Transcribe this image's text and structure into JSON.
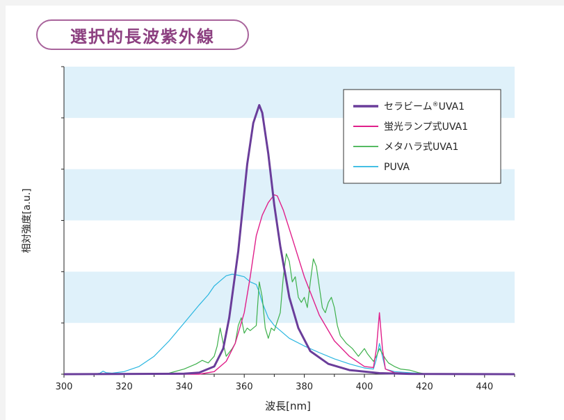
{
  "title": "選択的長波紫外線",
  "chart_data": {
    "type": "line",
    "title": "選択的長波紫外線",
    "xlabel": "波長[nm]",
    "ylabel": "相対強度[a.u.]",
    "xlim": [
      300,
      450
    ],
    "ylim": [
      0,
      6
    ],
    "xticks": [
      300,
      320,
      340,
      360,
      380,
      400,
      420,
      440
    ],
    "band_rows": [
      1,
      3,
      5
    ],
    "legend": "top-right",
    "series": [
      {
        "name": "セラビーム®UVA1",
        "legend_sup_split": [
          5,
          6
        ],
        "color": "#6a3d9a",
        "width": 3,
        "points": [
          [
            300,
            0
          ],
          [
            340,
            0.01
          ],
          [
            345,
            0.03
          ],
          [
            350,
            0.15
          ],
          [
            353,
            0.5
          ],
          [
            355,
            1.1
          ],
          [
            358,
            2.4
          ],
          [
            361,
            4.1
          ],
          [
            363,
            4.9
          ],
          [
            365,
            5.25
          ],
          [
            366,
            5.1
          ],
          [
            368,
            4.3
          ],
          [
            370,
            3.3
          ],
          [
            372,
            2.5
          ],
          [
            375,
            1.5
          ],
          [
            378,
            0.9
          ],
          [
            382,
            0.45
          ],
          [
            388,
            0.2
          ],
          [
            395,
            0.08
          ],
          [
            405,
            0.02
          ],
          [
            415,
            0.005
          ],
          [
            450,
            0
          ]
        ]
      },
      {
        "name": "蛍光ランプ式UVA1",
        "color": "#e01f8a",
        "width": 1.4,
        "points": [
          [
            300,
            0
          ],
          [
            345,
            0
          ],
          [
            350,
            0.05
          ],
          [
            354,
            0.25
          ],
          [
            357,
            0.6
          ],
          [
            360,
            1.2
          ],
          [
            362,
            1.9
          ],
          [
            364,
            2.7
          ],
          [
            366,
            3.1
          ],
          [
            368,
            3.35
          ],
          [
            370,
            3.5
          ],
          [
            371,
            3.48
          ],
          [
            373,
            3.2
          ],
          [
            376,
            2.65
          ],
          [
            380,
            1.9
          ],
          [
            385,
            1.15
          ],
          [
            390,
            0.65
          ],
          [
            395,
            0.35
          ],
          [
            400,
            0.15
          ],
          [
            403,
            0.13
          ],
          [
            404,
            0.5
          ],
          [
            405,
            1.2
          ],
          [
            406,
            0.5
          ],
          [
            407,
            0.1
          ],
          [
            410,
            0.03
          ],
          [
            420,
            0
          ],
          [
            450,
            0
          ]
        ]
      },
      {
        "name": "メタハラ式UVA1",
        "color": "#3db04b",
        "width": 1.2,
        "points": [
          [
            300,
            0
          ],
          [
            330,
            0
          ],
          [
            335,
            0.02
          ],
          [
            340,
            0.1
          ],
          [
            344,
            0.2
          ],
          [
            346,
            0.27
          ],
          [
            348,
            0.22
          ],
          [
            350,
            0.35
          ],
          [
            351,
            0.55
          ],
          [
            352,
            0.9
          ],
          [
            353,
            0.6
          ],
          [
            354,
            0.35
          ],
          [
            356,
            0.5
          ],
          [
            357,
            0.6
          ],
          [
            358,
            0.95
          ],
          [
            359,
            1.1
          ],
          [
            360,
            0.8
          ],
          [
            361,
            0.9
          ],
          [
            362,
            0.85
          ],
          [
            364,
            0.95
          ],
          [
            365,
            1.8
          ],
          [
            366,
            1.5
          ],
          [
            367,
            0.9
          ],
          [
            368,
            0.7
          ],
          [
            369,
            0.9
          ],
          [
            370,
            0.85
          ],
          [
            372,
            1.2
          ],
          [
            373,
            1.9
          ],
          [
            374,
            2.35
          ],
          [
            375,
            2.2
          ],
          [
            376,
            1.8
          ],
          [
            377,
            1.9
          ],
          [
            378,
            1.5
          ],
          [
            379,
            1.4
          ],
          [
            380,
            1.5
          ],
          [
            381,
            1.3
          ],
          [
            382,
            1.8
          ],
          [
            383,
            2.25
          ],
          [
            384,
            2.1
          ],
          [
            385,
            1.7
          ],
          [
            386,
            1.3
          ],
          [
            387,
            1.2
          ],
          [
            388,
            1.4
          ],
          [
            389,
            1.5
          ],
          [
            390,
            1.3
          ],
          [
            391,
            0.95
          ],
          [
            392,
            0.75
          ],
          [
            394,
            0.6
          ],
          [
            396,
            0.5
          ],
          [
            398,
            0.35
          ],
          [
            400,
            0.5
          ],
          [
            401,
            0.4
          ],
          [
            403,
            0.25
          ],
          [
            404,
            0.35
          ],
          [
            405,
            0.5
          ],
          [
            406,
            0.4
          ],
          [
            407,
            0.3
          ],
          [
            408,
            0.22
          ],
          [
            410,
            0.15
          ],
          [
            412,
            0.1
          ],
          [
            415,
            0.08
          ],
          [
            418,
            0.03
          ],
          [
            420,
            0.01
          ],
          [
            450,
            0
          ]
        ]
      },
      {
        "name": "PUVA",
        "color": "#29b6e0",
        "width": 1.2,
        "points": [
          [
            300,
            0
          ],
          [
            310,
            0
          ],
          [
            312,
            0.02
          ],
          [
            313,
            0.06
          ],
          [
            314,
            0.03
          ],
          [
            316,
            0.02
          ],
          [
            320,
            0.05
          ],
          [
            325,
            0.15
          ],
          [
            330,
            0.35
          ],
          [
            335,
            0.65
          ],
          [
            340,
            1.0
          ],
          [
            345,
            1.35
          ],
          [
            348,
            1.55
          ],
          [
            350,
            1.72
          ],
          [
            352,
            1.82
          ],
          [
            354,
            1.92
          ],
          [
            356,
            1.95
          ],
          [
            358,
            1.93
          ],
          [
            360,
            1.9
          ],
          [
            362,
            1.8
          ],
          [
            364,
            1.75
          ],
          [
            365,
            1.6
          ],
          [
            366,
            1.4
          ],
          [
            368,
            1.1
          ],
          [
            370,
            0.95
          ],
          [
            372,
            0.85
          ],
          [
            375,
            0.7
          ],
          [
            380,
            0.55
          ],
          [
            385,
            0.42
          ],
          [
            390,
            0.3
          ],
          [
            395,
            0.2
          ],
          [
            400,
            0.12
          ],
          [
            403,
            0.1
          ],
          [
            404,
            0.3
          ],
          [
            405,
            0.6
          ],
          [
            406,
            0.35
          ],
          [
            407,
            0.1
          ],
          [
            410,
            0.05
          ],
          [
            420,
            0.01
          ],
          [
            450,
            0
          ]
        ]
      }
    ]
  }
}
